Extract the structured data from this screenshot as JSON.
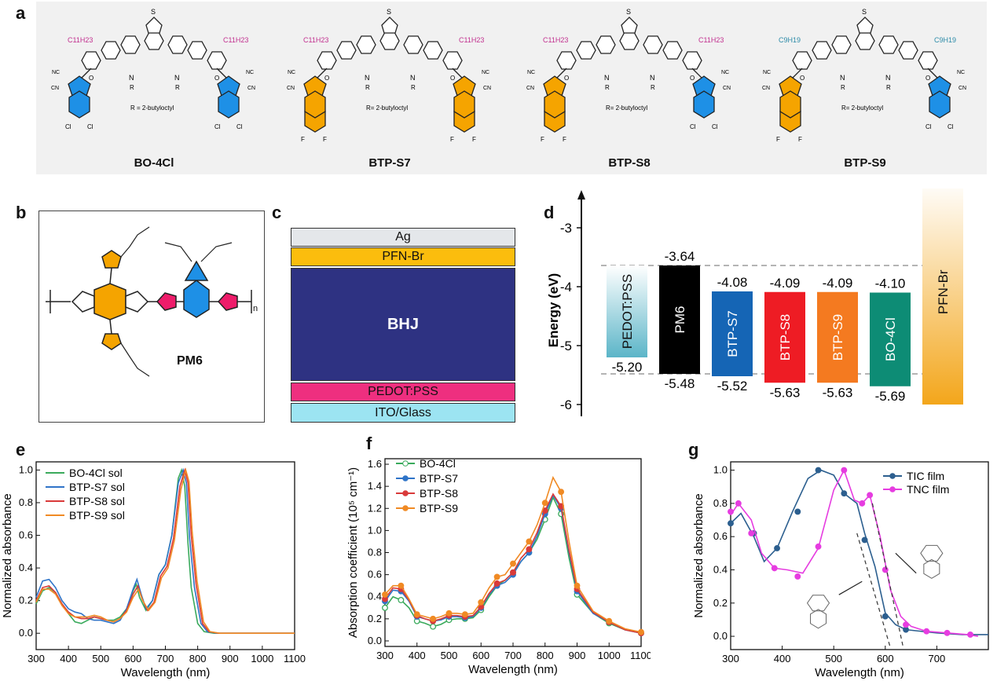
{
  "panels": {
    "a": "a",
    "b": "b",
    "c": "c",
    "d": "d",
    "e": "e",
    "f": "f",
    "g": "g"
  },
  "molecules": [
    {
      "name": "BO-4Cl",
      "chain": "C11H23",
      "sub": "R = 2-butyloctyl",
      "left_color": "#1e90e6",
      "right_color": "#1e90e6",
      "left_halogen": "Cl",
      "right_halogen": "Cl"
    },
    {
      "name": "BTP-S7",
      "chain": "C11H23",
      "sub": "R= 2-butyloctyl",
      "left_color": "#f5a400",
      "right_color": "#f5a400",
      "left_halogen": "F",
      "right_halogen": "F"
    },
    {
      "name": "BTP-S8",
      "chain": "C11H23",
      "sub": "R= 2-butyloctyl",
      "left_color": "#f5a400",
      "right_color": "#1e90e6",
      "left_halogen": "F",
      "right_halogen": "Cl"
    },
    {
      "name": "BTP-S9",
      "chain": "C9H19",
      "sub": "R= 2-butyloctyl",
      "left_color": "#f5a400",
      "right_color": "#1e90e6",
      "left_halogen": "F",
      "right_halogen": "Cl"
    }
  ],
  "pm6": {
    "name": "PM6",
    "n": "n"
  },
  "device": {
    "layers": [
      {
        "label": "Ag",
        "color": "#e4e7ea",
        "text_color": "#111"
      },
      {
        "label": "PFN-Br",
        "color": "#fbbd0d",
        "text_color": "#111"
      },
      {
        "label": "BHJ",
        "color": "#2e3282",
        "text_color": "#ffffff"
      },
      {
        "label": "PEDOT:PSS",
        "color": "#ee2f7f",
        "text_color": "#111"
      },
      {
        "label": "ITO/Glass",
        "color": "#9ce4f2",
        "text_color": "#111"
      }
    ]
  },
  "chart_data": [
    {
      "panel": "d",
      "type": "bar",
      "ylabel": "Energy (eV)",
      "ylim": [
        -6.2,
        -2.6
      ],
      "yticks": [
        -3,
        -4,
        -5,
        -6
      ],
      "dashed_lines": [
        -3.64,
        -5.48
      ],
      "bars": [
        {
          "label": "PEDOT:PSS",
          "top": -3.64,
          "bottom": -5.2,
          "top_label": "",
          "bottom_label": "-5.20",
          "color": "#5bb5c8",
          "gradient": true
        },
        {
          "label": "PM6",
          "top": -3.64,
          "bottom": -5.48,
          "top_label": "-3.64",
          "bottom_label": "-5.48",
          "color": "#000000"
        },
        {
          "label": "BTP-S7",
          "top": -4.08,
          "bottom": -5.52,
          "top_label": "-4.08",
          "bottom_label": "-5.52",
          "color": "#1565b5"
        },
        {
          "label": "BTP-S8",
          "top": -4.09,
          "bottom": -5.63,
          "top_label": "-4.09",
          "bottom_label": "-5.63",
          "color": "#ee1c24"
        },
        {
          "label": "BTP-S9",
          "top": -4.09,
          "bottom": -5.63,
          "top_label": "-4.09",
          "bottom_label": "-5.63",
          "color": "#f47a20"
        },
        {
          "label": "BO-4Cl",
          "top": -4.1,
          "bottom": -5.69,
          "top_label": "-4.10",
          "bottom_label": "-5.69",
          "color": "#0d8c75"
        },
        {
          "label": "PFN-Br",
          "top": -2.18,
          "bottom": -6.0,
          "top_label": "-2.18",
          "bottom_label": "",
          "color": "#f3a61b",
          "gradient": true
        }
      ]
    },
    {
      "panel": "e",
      "type": "line",
      "xlabel": "Wavelength (nm)",
      "ylabel": "Normalized absorbance",
      "xlim": [
        300,
        1100
      ],
      "ylim": [
        -0.1,
        1.05
      ],
      "xticks": [
        300,
        400,
        500,
        600,
        700,
        800,
        900,
        1000,
        1100
      ],
      "yticks": [
        0.0,
        0.2,
        0.4,
        0.6,
        0.8,
        1.0
      ],
      "series": [
        {
          "name": "BO-4Cl sol",
          "color": "#3aaa5c",
          "x": [
            300,
            320,
            340,
            360,
            380,
            400,
            420,
            440,
            460,
            480,
            500,
            520,
            540,
            560,
            580,
            600,
            610,
            620,
            640,
            660,
            680,
            700,
            720,
            740,
            750,
            760,
            770,
            780,
            800,
            820,
            850,
            900,
            1100
          ],
          "y": [
            0.18,
            0.26,
            0.28,
            0.25,
            0.18,
            0.12,
            0.07,
            0.06,
            0.08,
            0.1,
            0.09,
            0.08,
            0.08,
            0.1,
            0.15,
            0.26,
            0.3,
            0.22,
            0.14,
            0.2,
            0.36,
            0.42,
            0.6,
            0.95,
            1.0,
            0.9,
            0.55,
            0.28,
            0.06,
            0.01,
            0.0,
            0.0,
            0.0
          ]
        },
        {
          "name": "BTP-S7 sol",
          "color": "#2f74c8",
          "x": [
            300,
            320,
            340,
            360,
            380,
            400,
            420,
            440,
            460,
            480,
            500,
            520,
            540,
            560,
            580,
            600,
            612,
            625,
            640,
            660,
            680,
            700,
            720,
            740,
            755,
            765,
            775,
            790,
            810,
            830,
            860,
            900,
            1100
          ],
          "y": [
            0.22,
            0.32,
            0.33,
            0.28,
            0.2,
            0.15,
            0.13,
            0.12,
            0.09,
            0.08,
            0.08,
            0.07,
            0.06,
            0.08,
            0.15,
            0.27,
            0.33,
            0.24,
            0.15,
            0.2,
            0.36,
            0.42,
            0.6,
            0.92,
            1.0,
            0.92,
            0.58,
            0.28,
            0.06,
            0.01,
            0.0,
            0.0,
            0.0
          ]
        },
        {
          "name": "BTP-S8 sol",
          "color": "#d93a3a",
          "x": [
            300,
            320,
            340,
            360,
            380,
            400,
            420,
            440,
            460,
            480,
            500,
            520,
            540,
            560,
            580,
            600,
            615,
            628,
            645,
            665,
            685,
            705,
            725,
            745,
            760,
            770,
            780,
            795,
            815,
            835,
            865,
            900,
            1100
          ],
          "y": [
            0.2,
            0.28,
            0.29,
            0.25,
            0.18,
            0.13,
            0.1,
            0.09,
            0.09,
            0.1,
            0.09,
            0.08,
            0.07,
            0.09,
            0.14,
            0.24,
            0.29,
            0.21,
            0.14,
            0.19,
            0.35,
            0.41,
            0.58,
            0.9,
            1.0,
            0.92,
            0.6,
            0.3,
            0.06,
            0.01,
            0.0,
            0.0,
            0.0
          ]
        },
        {
          "name": "BTP-S9 sol",
          "color": "#f08a24",
          "x": [
            300,
            320,
            340,
            360,
            380,
            400,
            420,
            440,
            460,
            480,
            500,
            520,
            540,
            560,
            580,
            600,
            617,
            630,
            648,
            668,
            688,
            708,
            728,
            748,
            763,
            773,
            783,
            798,
            818,
            838,
            868,
            900,
            1100
          ],
          "y": [
            0.19,
            0.27,
            0.27,
            0.24,
            0.17,
            0.12,
            0.1,
            0.1,
            0.1,
            0.11,
            0.1,
            0.08,
            0.07,
            0.09,
            0.13,
            0.22,
            0.27,
            0.2,
            0.14,
            0.19,
            0.34,
            0.4,
            0.57,
            0.88,
            1.0,
            0.93,
            0.62,
            0.32,
            0.07,
            0.01,
            0.0,
            0.0,
            0.0
          ]
        }
      ]
    },
    {
      "panel": "f",
      "type": "line",
      "xlabel": "Wavelength (nm)",
      "ylabel": "Absorption coefficient (10⁵ cm⁻¹)",
      "xlim": [
        300,
        1100
      ],
      "ylim": [
        -0.05,
        1.65
      ],
      "xticks": [
        300,
        400,
        500,
        600,
        700,
        800,
        900,
        1000,
        1100
      ],
      "yticks": [
        0.0,
        0.2,
        0.4,
        0.6,
        0.8,
        1.0,
        1.2,
        1.4,
        1.6
      ],
      "series": [
        {
          "name": "BO-4Cl",
          "color": "#3aaa5c",
          "hollow": true,
          "x": [
            300,
            325,
            350,
            375,
            400,
            425,
            450,
            475,
            500,
            525,
            550,
            575,
            600,
            625,
            650,
            675,
            700,
            725,
            750,
            775,
            800,
            825,
            850,
            875,
            900,
            950,
            1000,
            1050,
            1100
          ],
          "y": [
            0.3,
            0.4,
            0.37,
            0.3,
            0.18,
            0.16,
            0.13,
            0.15,
            0.19,
            0.2,
            0.2,
            0.21,
            0.28,
            0.4,
            0.5,
            0.55,
            0.62,
            0.72,
            0.8,
            0.92,
            1.1,
            1.3,
            1.15,
            0.75,
            0.42,
            0.25,
            0.16,
            0.1,
            0.07
          ]
        },
        {
          "name": "BTP-S7",
          "color": "#2f74c8",
          "x": [
            300,
            325,
            350,
            375,
            400,
            425,
            450,
            475,
            500,
            525,
            550,
            575,
            600,
            625,
            650,
            675,
            700,
            725,
            750,
            775,
            800,
            825,
            850,
            875,
            900,
            950,
            1000,
            1050,
            1100
          ],
          "y": [
            0.36,
            0.46,
            0.45,
            0.36,
            0.22,
            0.2,
            0.18,
            0.19,
            0.22,
            0.22,
            0.21,
            0.22,
            0.3,
            0.42,
            0.5,
            0.53,
            0.6,
            0.72,
            0.8,
            0.95,
            1.15,
            1.32,
            1.2,
            0.8,
            0.45,
            0.25,
            0.17,
            0.1,
            0.07
          ]
        },
        {
          "name": "BTP-S8",
          "color": "#d93a3a",
          "x": [
            300,
            325,
            350,
            375,
            400,
            425,
            450,
            475,
            500,
            525,
            550,
            575,
            600,
            625,
            650,
            675,
            700,
            725,
            750,
            775,
            800,
            825,
            850,
            875,
            900,
            950,
            1000,
            1050,
            1100
          ],
          "y": [
            0.38,
            0.48,
            0.47,
            0.37,
            0.23,
            0.2,
            0.18,
            0.2,
            0.23,
            0.23,
            0.22,
            0.23,
            0.31,
            0.43,
            0.52,
            0.55,
            0.62,
            0.75,
            0.83,
            0.98,
            1.18,
            1.33,
            1.22,
            0.82,
            0.47,
            0.26,
            0.17,
            0.1,
            0.07
          ]
        },
        {
          "name": "BTP-S9",
          "color": "#f08a24",
          "x": [
            300,
            325,
            350,
            375,
            400,
            425,
            450,
            475,
            500,
            525,
            550,
            575,
            600,
            625,
            650,
            675,
            700,
            725,
            750,
            775,
            800,
            825,
            850,
            875,
            900,
            950,
            1000,
            1050,
            1100
          ],
          "y": [
            0.42,
            0.5,
            0.5,
            0.38,
            0.24,
            0.22,
            0.2,
            0.22,
            0.25,
            0.25,
            0.24,
            0.25,
            0.35,
            0.48,
            0.58,
            0.6,
            0.7,
            0.8,
            0.9,
            1.05,
            1.25,
            1.48,
            1.35,
            0.9,
            0.5,
            0.27,
            0.18,
            0.11,
            0.08
          ]
        }
      ]
    },
    {
      "panel": "g",
      "type": "line",
      "xlabel": "Wavelength (nm)",
      "ylabel": "Normalized absorbance",
      "xlim": [
        300,
        800
      ],
      "ylim": [
        -0.08,
        1.05
      ],
      "xticks": [
        300,
        400,
        500,
        600,
        700
      ],
      "yticks": [
        0.0,
        0.2,
        0.4,
        0.6,
        0.8,
        1.0
      ],
      "series": [
        {
          "name": "TIC film",
          "color": "#2c5f8f",
          "x": [
            300,
            320,
            345,
            365,
            390,
            420,
            450,
            475,
            500,
            520,
            545,
            560,
            580,
            600,
            620,
            640,
            670,
            700,
            750,
            800
          ],
          "y": [
            0.68,
            0.74,
            0.6,
            0.45,
            0.53,
            0.75,
            0.95,
            1.0,
            0.97,
            0.86,
            0.8,
            0.62,
            0.42,
            0.14,
            0.07,
            0.04,
            0.03,
            0.02,
            0.01,
            0.01
          ],
          "marker_x": [
            300,
            345,
            390,
            430,
            470,
            520,
            560,
            600,
            640
          ],
          "marker_y": [
            0.68,
            0.62,
            0.53,
            0.75,
            1.0,
            0.86,
            0.58,
            0.12,
            0.04
          ]
        },
        {
          "name": "TNC film",
          "color": "#e63ce0",
          "x": [
            300,
            315,
            340,
            360,
            385,
            410,
            440,
            470,
            500,
            520,
            540,
            555,
            570,
            590,
            610,
            630,
            650,
            680,
            720,
            760,
            780
          ],
          "y": [
            0.73,
            0.8,
            0.7,
            0.5,
            0.41,
            0.4,
            0.38,
            0.53,
            0.88,
            1.0,
            0.82,
            0.8,
            0.85,
            0.6,
            0.28,
            0.12,
            0.06,
            0.03,
            0.02,
            0.01,
            0.0
          ],
          "marker_x": [
            300,
            315,
            340,
            385,
            430,
            470,
            520,
            555,
            570,
            600,
            640,
            680,
            720,
            765
          ],
          "marker_y": [
            0.75,
            0.8,
            0.62,
            0.41,
            0.36,
            0.54,
            1.0,
            0.8,
            0.85,
            0.4,
            0.07,
            0.03,
            0.02,
            0.01
          ]
        }
      ]
    }
  ]
}
